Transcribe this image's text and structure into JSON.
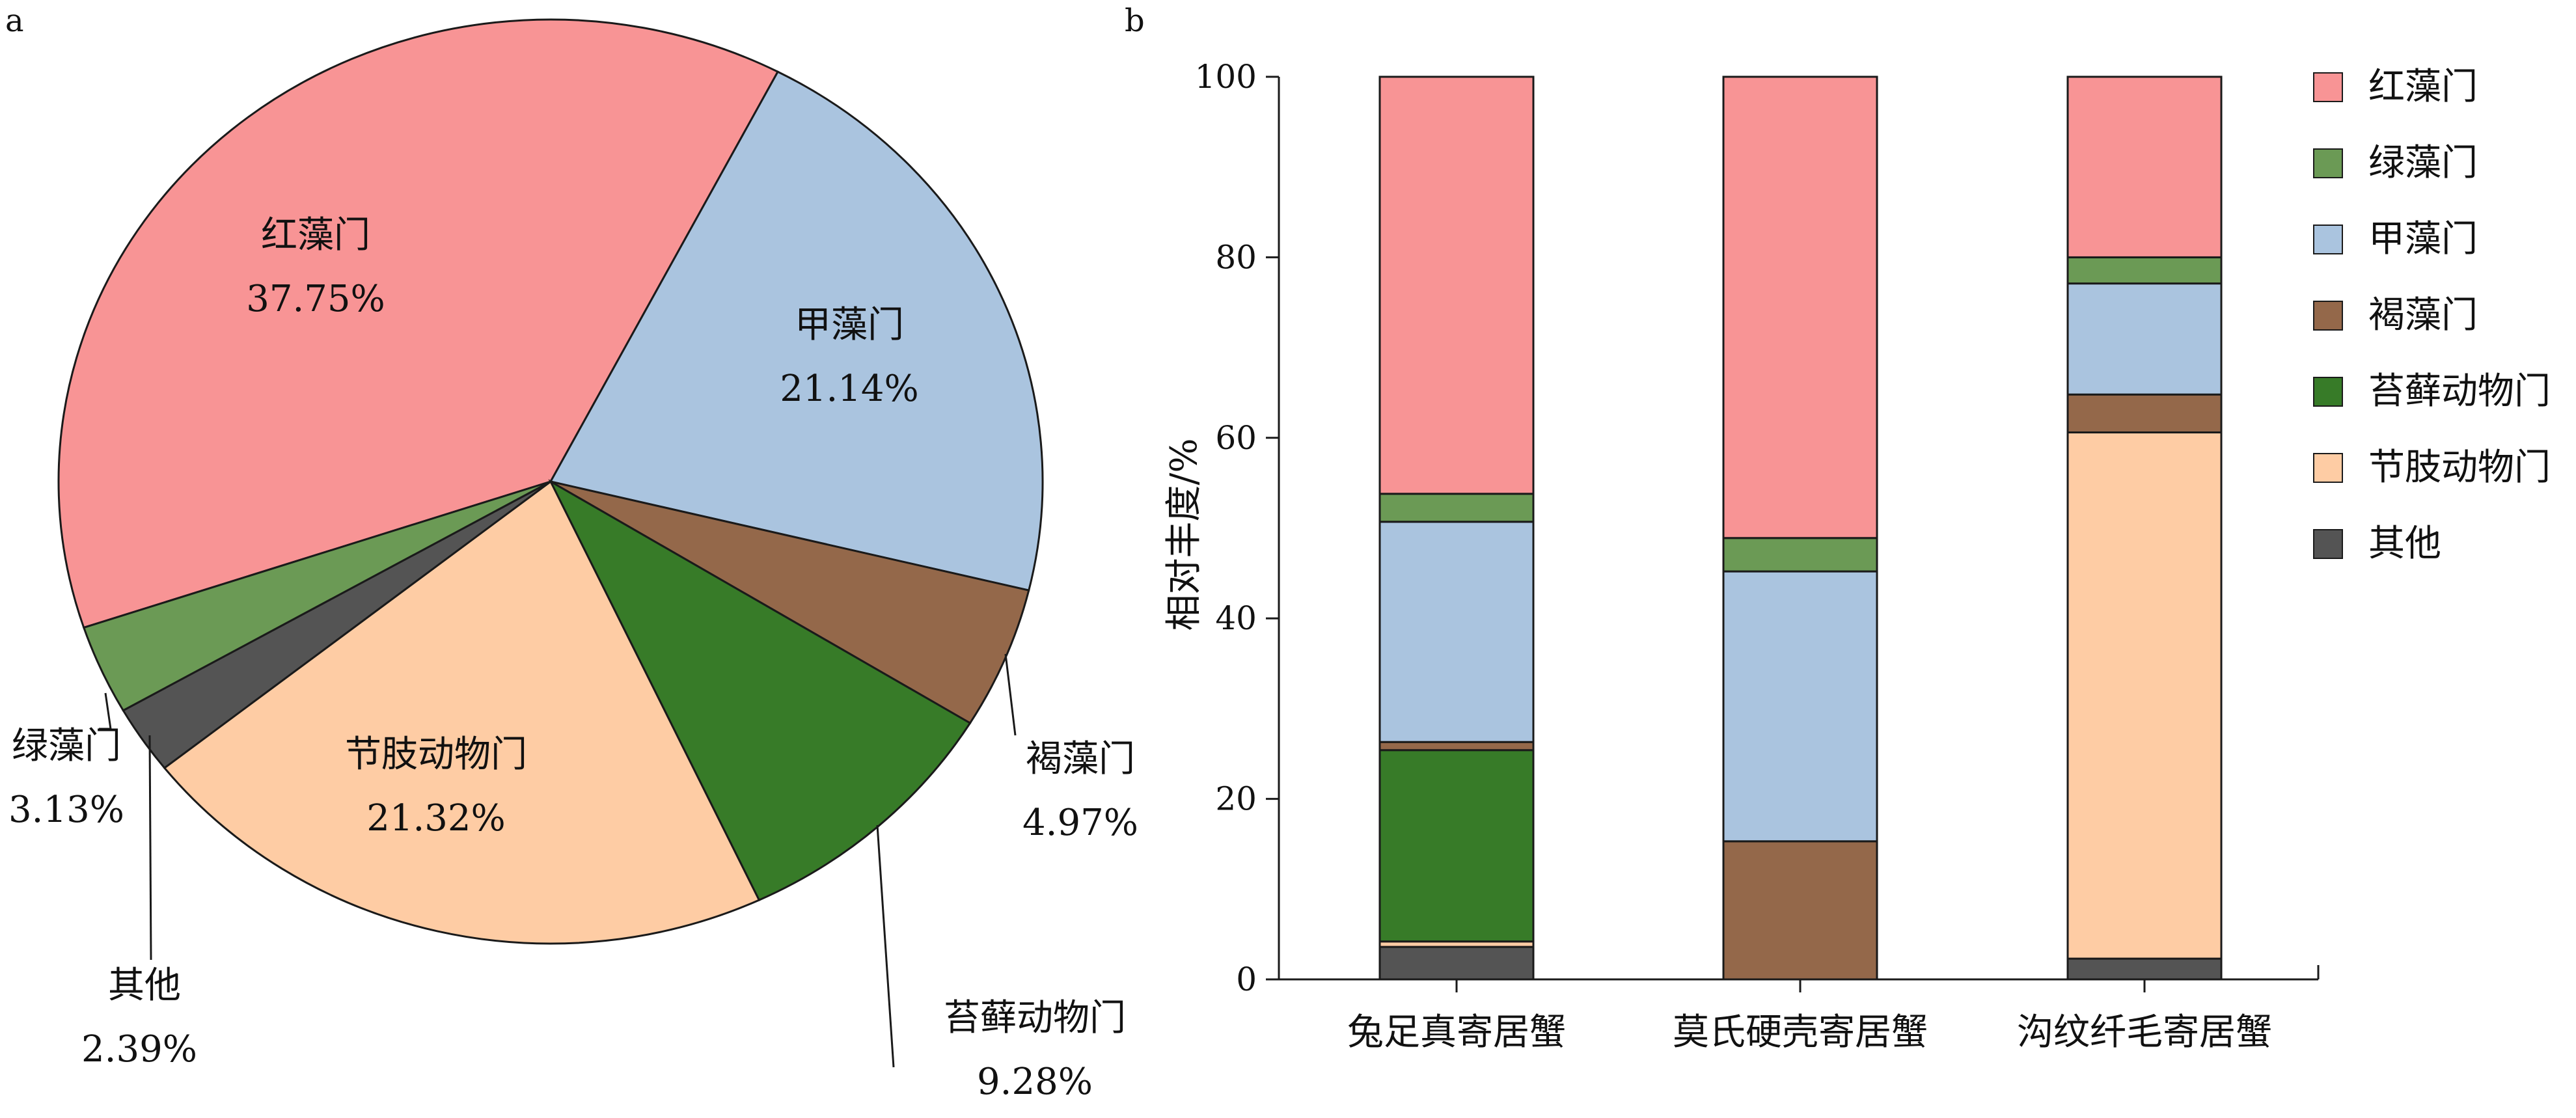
{
  "panel_a": {
    "letter": "a"
  },
  "panel_b": {
    "letter": "b"
  },
  "colors": {
    "红藻门": "#f89495",
    "甲藻门": "#aac4df",
    "褐藻门": "#94684a",
    "苔藓动物门": "#377b28",
    "节肢动物门": "#fecca4",
    "其他": "#545454",
    "绿藻门": "#6b9a55"
  },
  "chart_data": [
    {
      "type": "pie",
      "title": "",
      "slices": [
        {
          "label": "红藻门",
          "percent_label": "37.75%",
          "value": 37.75
        },
        {
          "label": "甲藻门",
          "percent_label": "21.14%",
          "value": 21.14
        },
        {
          "label": "褐藻门",
          "percent_label": "4.97%",
          "value": 4.97
        },
        {
          "label": "苔藓动物门",
          "percent_label": "9.28%",
          "value": 9.28
        },
        {
          "label": "节肢动物门",
          "percent_label": "21.32%",
          "value": 21.32
        },
        {
          "label": "其他",
          "percent_label": "2.39%",
          "value": 2.39
        },
        {
          "label": "绿藻门",
          "percent_label": "3.13%",
          "value": 3.13
        }
      ]
    },
    {
      "type": "bar",
      "stacked": true,
      "title": "",
      "xlabel": "",
      "ylabel": "相对丰度/%",
      "ylim": [
        0,
        100
      ],
      "yticks": [
        "0",
        "20",
        "40",
        "60",
        "80",
        "100"
      ],
      "categories": [
        "兔足真寄居蟹",
        "莫氏硬壳寄居蟹",
        "沟纹纤毛寄居蟹"
      ],
      "legend_position": "right",
      "legend_order": [
        "红藻门",
        "绿藻门",
        "甲藻门",
        "褐藻门",
        "苔藓动物门",
        "节肢动物门",
        "其他"
      ],
      "series": [
        {
          "name": "其他",
          "values": [
            3.6,
            0,
            2.3
          ]
        },
        {
          "name": "节肢动物门",
          "values": [
            0.6,
            0,
            58.3
          ]
        },
        {
          "name": "苔藓动物门",
          "values": [
            21.2,
            0,
            0
          ]
        },
        {
          "name": "褐藻门",
          "values": [
            0.9,
            15.3,
            4.2
          ]
        },
        {
          "name": "甲藻门",
          "values": [
            24.4,
            29.9,
            12.3
          ]
        },
        {
          "name": "绿藻门",
          "values": [
            3.1,
            3.7,
            2.9
          ]
        },
        {
          "name": "红藻门",
          "values": [
            46.2,
            51.1,
            20.0
          ]
        }
      ]
    }
  ]
}
